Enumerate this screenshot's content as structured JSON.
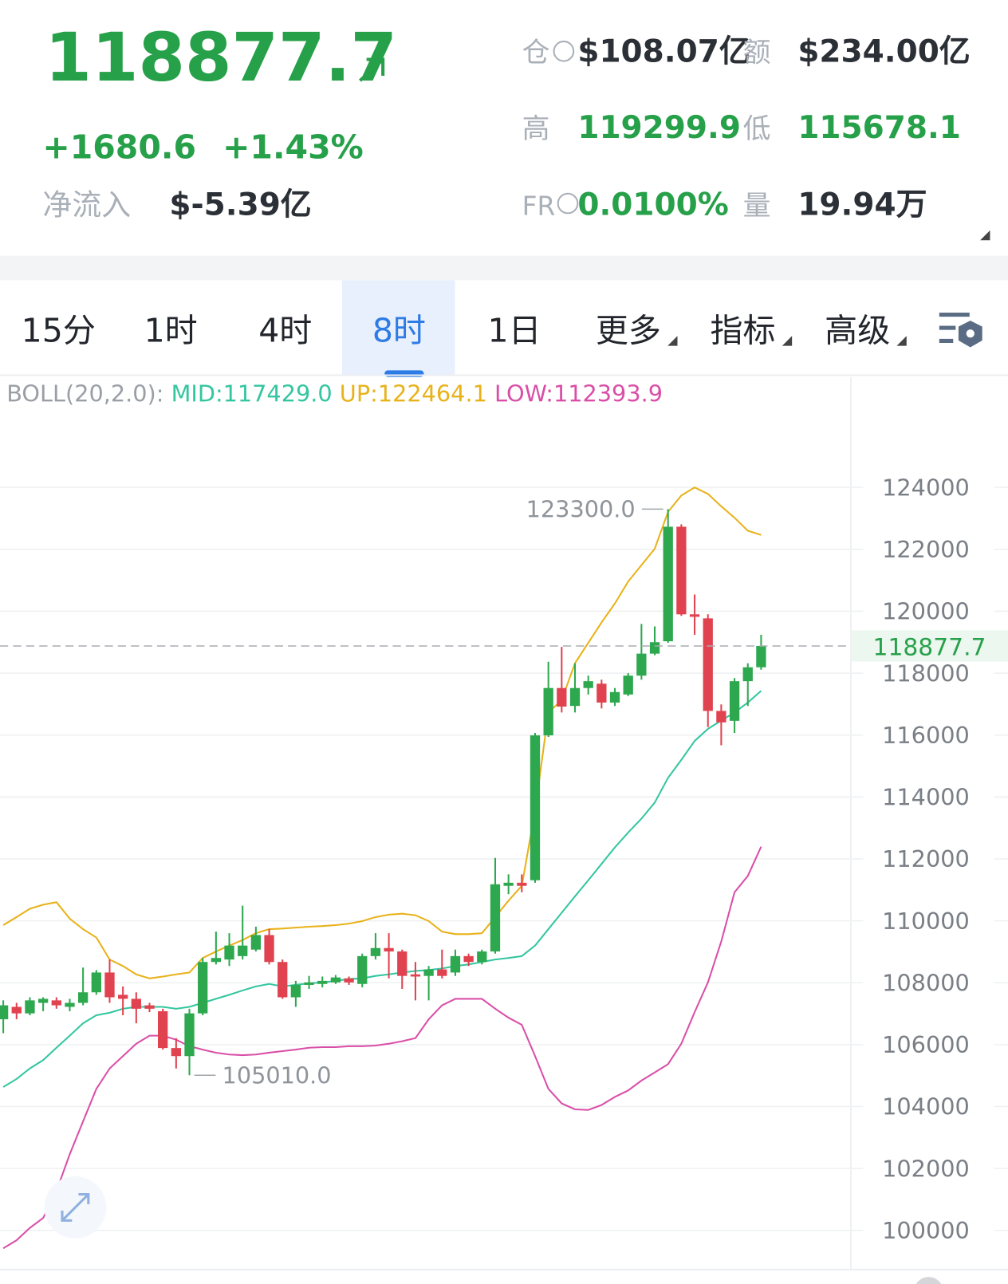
{
  "header": {
    "price": "118877.7",
    "change": "+1680.6",
    "change_pct": "+1.43%",
    "net_flow_label": "净流入",
    "net_flow": "$-5.39亿",
    "stats": [
      {
        "label": "仓",
        "value": "$108.07亿"
      },
      {
        "label": "额",
        "value": "$234.00亿"
      },
      {
        "label": "高",
        "value": "119299.9"
      },
      {
        "label": "低",
        "value": "115678.1"
      },
      {
        "label": "FR",
        "value": "0.0100%"
      },
      {
        "label": "量",
        "value": "19.94万"
      }
    ]
  },
  "tabs": [
    "15分",
    "1时",
    "4时",
    "8时",
    "1日",
    "更多",
    "指标",
    "高级"
  ],
  "selected_tab": 3,
  "chart_data": {
    "type": "candlestick",
    "indicator_label": "BOLL(20,2.0):",
    "up_color": "#2ea84f",
    "down_color": "#e0434f",
    "ylim": [
      98760,
      127570
    ],
    "yticks": [
      124000,
      122000,
      120000,
      118000,
      116000,
      114000,
      112000,
      110000,
      108000,
      106000,
      104000,
      102000,
      100000
    ],
    "grid": true,
    "last_price": 118877.7,
    "annotations": [
      {
        "value": 123300,
        "label": "123300.0",
        "index": 50
      },
      {
        "value": 105010,
        "label": "105010.0",
        "index": 14
      }
    ],
    "candles": {
      "open": [
        106820,
        107220,
        107010,
        107350,
        107430,
        107220,
        107350,
        107690,
        108330,
        107610,
        107480,
        107270,
        107080,
        105890,
        105630,
        107010,
        108670,
        108750,
        108860,
        109070,
        109540,
        108670,
        107530,
        107930,
        107960,
        108010,
        108140,
        107960,
        108860,
        109120,
        109010,
        108270,
        108220,
        108430,
        108330,
        108860,
        108670,
        109010,
        111130,
        111230,
        111310,
        115990,
        117520,
        116940,
        117520,
        117660,
        117050,
        117310,
        117920,
        118630,
        119030,
        122730,
        119900,
        119770,
        116780,
        116460,
        117740,
        118190
      ],
      "high": [
        107430,
        107350,
        107530,
        107530,
        107530,
        107480,
        108490,
        108410,
        108750,
        107880,
        107690,
        107350,
        107160,
        106210,
        107160,
        108800,
        109650,
        109600,
        110490,
        109810,
        109730,
        108750,
        108060,
        108220,
        108200,
        108250,
        108200,
        108940,
        109600,
        109600,
        109070,
        108670,
        108540,
        109070,
        109070,
        108940,
        109070,
        112030,
        111500,
        111500,
        116070,
        118370,
        118850,
        118320,
        117920,
        117790,
        117520,
        118000,
        119590,
        119510,
        123300,
        122810,
        120540,
        119900,
        116990,
        117840,
        118320,
        119240
      ],
      "low": [
        106370,
        106820,
        106950,
        107080,
        107160,
        107080,
        107270,
        107610,
        107350,
        106950,
        106690,
        107050,
        105840,
        105230,
        105010,
        106950,
        108590,
        108540,
        108750,
        109010,
        108590,
        107480,
        107220,
        107800,
        107850,
        107960,
        107930,
        107850,
        108750,
        108140,
        107800,
        107430,
        107430,
        108140,
        108220,
        108540,
        108590,
        108940,
        110860,
        110920,
        111230,
        115940,
        116730,
        116730,
        117310,
        116860,
        116940,
        117260,
        117790,
        118580,
        118980,
        119850,
        119240,
        116260,
        115670,
        116070,
        116940,
        118110
      ],
      "close": [
        107270,
        107010,
        107430,
        107480,
        107270,
        107350,
        107690,
        108330,
        107530,
        107480,
        107160,
        107160,
        105890,
        105630,
        107010,
        108670,
        108800,
        109200,
        109200,
        109540,
        108670,
        107530,
        107930,
        108010,
        108060,
        108170,
        108010,
        108860,
        109120,
        109010,
        108220,
        108200,
        108430,
        108220,
        108860,
        108670,
        109010,
        111180,
        111230,
        111130,
        115990,
        117520,
        116920,
        117520,
        117740,
        117050,
        117390,
        117920,
        118630,
        119000,
        122730,
        119900,
        119820,
        116780,
        116410,
        117740,
        118190,
        118877.7
      ]
    },
    "series": [
      {
        "name": "MID",
        "label": "MID:117429.0",
        "color": "#34c6a0",
        "values": [
          104630,
          104890,
          105230,
          105500,
          105900,
          106290,
          106690,
          106950,
          107030,
          107160,
          107220,
          107220,
          107220,
          107160,
          107220,
          107350,
          107480,
          107610,
          107750,
          107880,
          107960,
          107880,
          107930,
          107980,
          108010,
          108060,
          108120,
          108140,
          108220,
          108270,
          108330,
          108380,
          108410,
          108460,
          108540,
          108590,
          108670,
          108750,
          108800,
          108860,
          109200,
          109730,
          110260,
          110790,
          111310,
          111840,
          112370,
          112850,
          113300,
          113820,
          114620,
          115200,
          115810,
          116200,
          116470,
          116730,
          117050,
          117429.0
        ]
      },
      {
        "name": "UP",
        "label": "UP:122464.1",
        "color": "#e8b21a",
        "values": [
          109860,
          110120,
          110390,
          110520,
          110600,
          110070,
          109730,
          109460,
          108750,
          108540,
          108270,
          108140,
          108200,
          108270,
          108330,
          108800,
          109010,
          109200,
          109380,
          109600,
          109730,
          109750,
          109780,
          109810,
          109830,
          109860,
          109910,
          109990,
          110120,
          110200,
          110230,
          110180,
          109990,
          109650,
          109570,
          109570,
          109600,
          110120,
          110650,
          111130,
          113560,
          116730,
          117130,
          118320,
          118980,
          119640,
          120250,
          120960,
          121490,
          122020,
          123210,
          123740,
          124000,
          123790,
          123390,
          123020,
          122600,
          122464.1
        ]
      },
      {
        "name": "LOW",
        "label": "LOW:112393.9",
        "color": "#d94fa8",
        "values": [
          99420,
          99680,
          100080,
          100400,
          101270,
          102460,
          103520,
          104570,
          105230,
          105630,
          106030,
          106290,
          106290,
          106160,
          105950,
          105840,
          105740,
          105680,
          105660,
          105680,
          105740,
          105790,
          105840,
          105900,
          105920,
          105920,
          105950,
          105950,
          105970,
          106030,
          106110,
          106210,
          106820,
          107270,
          107480,
          107480,
          107480,
          107160,
          106870,
          106640,
          105630,
          104570,
          104100,
          103910,
          103890,
          104050,
          104310,
          104520,
          104840,
          105100,
          105370,
          106030,
          107050,
          108010,
          109330,
          110920,
          111450,
          112393.9
        ]
      }
    ]
  }
}
